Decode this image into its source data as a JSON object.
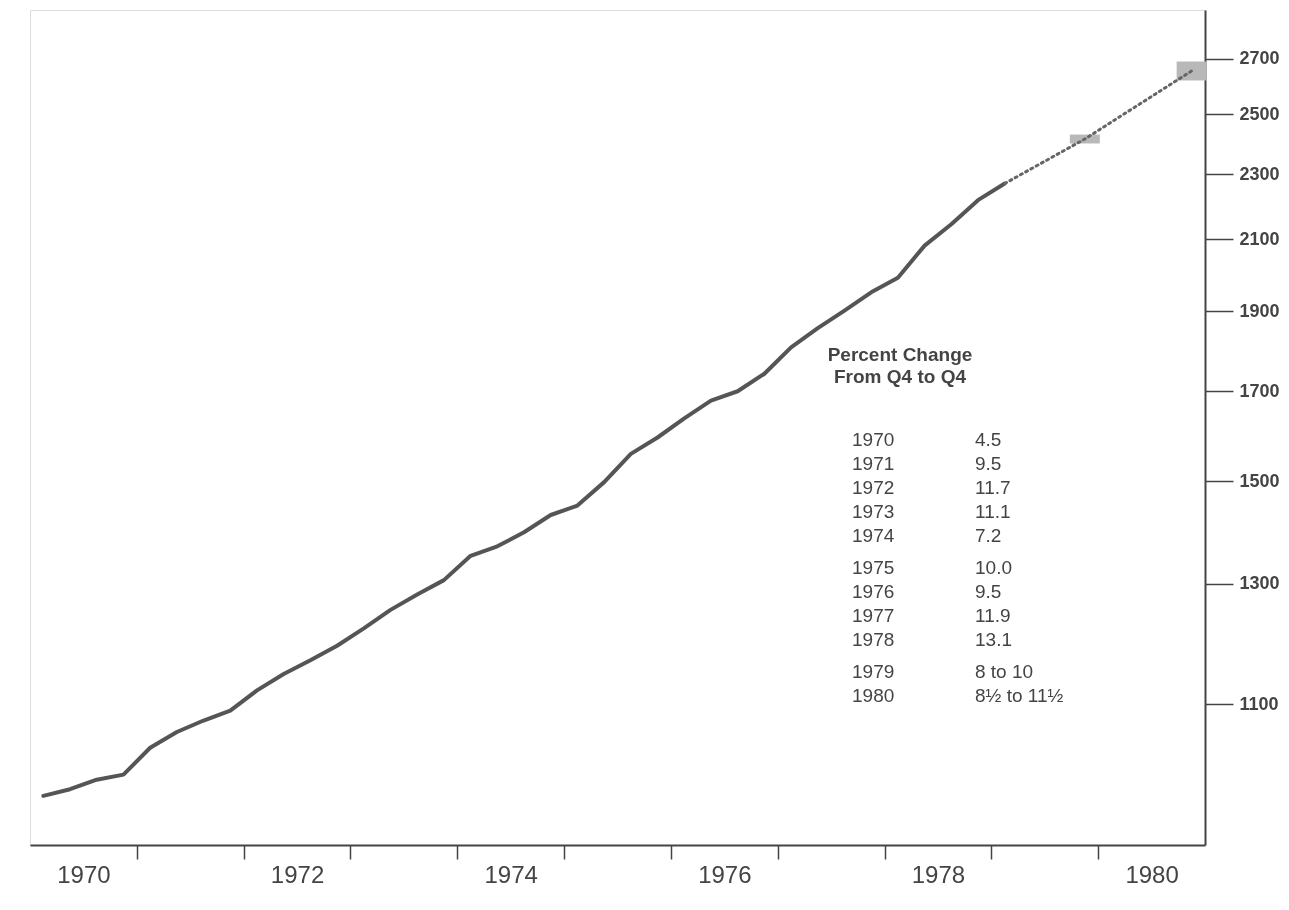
{
  "chart_data": {
    "type": "line",
    "log": "y",
    "grid": false,
    "legend": false,
    "marker": "none",
    "xlim": [
      1970,
      1981
    ],
    "ylim": [
      904,
      2890
    ],
    "yticks": [
      1100,
      1300,
      1500,
      1700,
      1900,
      2100,
      2300,
      2500,
      2700
    ],
    "xticks": [
      {
        "value": 1970.5,
        "label": "1970"
      },
      {
        "value": 1971,
        "label": null
      },
      {
        "value": 1972,
        "label": null
      },
      {
        "value": 1972.5,
        "label": "1972"
      },
      {
        "value": 1973,
        "label": null
      },
      {
        "value": 1974,
        "label": null
      },
      {
        "value": 1974.5,
        "label": "1974"
      },
      {
        "value": 1975,
        "label": null
      },
      {
        "value": 1976,
        "label": null
      },
      {
        "value": 1976.5,
        "label": "1976"
      },
      {
        "value": 1977,
        "label": null
      },
      {
        "value": 1978,
        "label": null
      },
      {
        "value": 1978.5,
        "label": "1978"
      },
      {
        "value": 1979,
        "label": null
      },
      {
        "value": 1980,
        "label": null
      },
      {
        "value": 1980.5,
        "label": "1980"
      }
    ],
    "series": [
      {
        "color": "#555555",
        "line_style": "solid",
        "x": [
          1970.125,
          1970.375,
          1970.625,
          1970.875,
          1971.125,
          1971.375,
          1971.625,
          1971.875,
          1972.125,
          1972.375,
          1972.625,
          1972.875,
          1973.125,
          1973.375,
          1973.625,
          1973.875,
          1974.125,
          1974.375,
          1974.625,
          1974.875,
          1975.125,
          1975.375,
          1975.625,
          1975.875,
          1976.125,
          1976.375,
          1976.625,
          1976.875,
          1977.125,
          1977.375,
          1977.625,
          1977.875,
          1978.125,
          1978.375,
          1978.625,
          1978.875,
          1979.125
        ],
        "values": [
          968,
          977,
          990,
          997,
          1035,
          1058,
          1075,
          1090,
          1121,
          1147,
          1169,
          1193,
          1222,
          1254,
          1281,
          1307,
          1352,
          1370,
          1397,
          1431,
          1450,
          1498,
          1558,
          1594,
          1637,
          1678,
          1700,
          1742,
          1807,
          1856,
          1902,
          1951,
          1991,
          2082,
          2145,
          2218,
          2270
        ]
      },
      {
        "color": "#666666",
        "line_style": "dotted",
        "x": [
          1979.125,
          1979.875,
          1980.875
        ],
        "values": [
          2270,
          2415,
          2655
        ],
        "errors": [
          null,
          [
            2400,
            2430
          ],
          [
            2620,
            2690
          ]
        ]
      }
    ],
    "annotations": [
      "Percent Change",
      "From Q4 to Q4",
      "1970 4.5",
      "1971 9.5",
      "1972 11.7",
      "1973 11.1",
      "1974 7.2",
      "1975 10.0",
      "1976 9.5",
      "1977 11.9",
      "1978 13.1",
      "1979 8 to 10",
      "1980 8½ to 11½"
    ]
  }
}
